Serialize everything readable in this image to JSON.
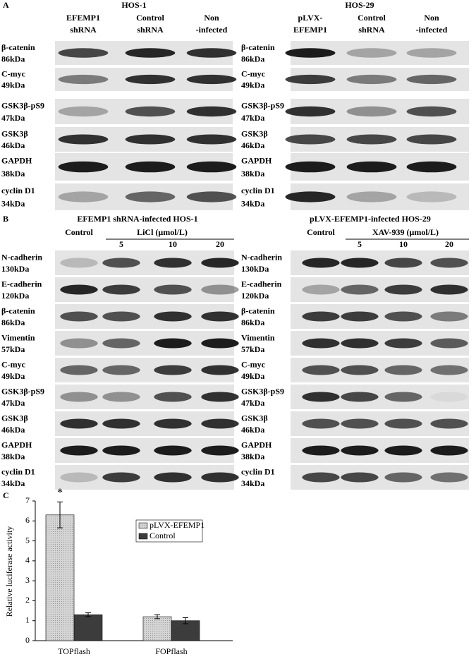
{
  "panel_labels": [
    "A",
    "B",
    "C"
  ],
  "blots_a": {
    "left": {
      "title": "HOS-1",
      "columns": [
        [
          "EFEMP1",
          "shRNA"
        ],
        [
          "Control",
          "shRNA"
        ],
        [
          "Non",
          "-infected"
        ]
      ],
      "rows": [
        [
          "β-catenin",
          "86kDa"
        ],
        [
          "C-myc",
          "49kDa"
        ],
        [
          "GSK3β-pS9",
          "47kDa"
        ],
        [
          "GSK3β",
          "46kDa"
        ],
        [
          "GAPDH",
          "38kDa"
        ],
        [
          "cyclin D1",
          "34kDa"
        ]
      ]
    },
    "right": {
      "title": "HOS-29",
      "columns": [
        [
          "pLVX-",
          "EFEMP1"
        ],
        [
          "Control",
          "shRNA"
        ],
        [
          "Non",
          "-infected"
        ]
      ],
      "rows": [
        [
          "β-catenin",
          "86kDa"
        ],
        [
          "C-myc",
          "49kDa"
        ],
        [
          "GSK3β-pS9",
          "47kDa"
        ],
        [
          "GSK3β",
          "46kDa"
        ],
        [
          "GAPDH",
          "38kDa"
        ],
        [
          "cyclin D1",
          "34kDa"
        ]
      ]
    }
  },
  "blots_b": {
    "left": {
      "title": "EFEMP1 shRNA-infected HOS-1",
      "control": "Control",
      "treatment": "LiCl (μmol/L)",
      "doses": [
        "5",
        "10",
        "20"
      ],
      "rows": [
        [
          "N-cadherin",
          "130kDa"
        ],
        [
          "E-cadherin",
          "120kDa"
        ],
        [
          "β-catenin",
          "86kDa"
        ],
        [
          "Vimentin",
          "57kDa"
        ],
        [
          "C-myc",
          "49kDa"
        ],
        [
          "GSK3β-pS9",
          "47kDa"
        ],
        [
          "GSK3β",
          "46kDa"
        ],
        [
          "GAPDH",
          "38kDa"
        ],
        [
          "cyclin D1",
          "34kDa"
        ]
      ]
    },
    "right": {
      "title": "pLVX-EFEMP1-infected HOS-29",
      "control": "Control",
      "treatment": "XAV-939 (μmol/L)",
      "doses": [
        "5",
        "10",
        "20"
      ],
      "rows": [
        [
          "N-cadherin",
          "130kDa"
        ],
        [
          "E-cadherin",
          "120kDa"
        ],
        [
          "β-catenin",
          "86kDa"
        ],
        [
          "Vimentin",
          "57kDa"
        ],
        [
          "C-myc",
          "49kDa"
        ],
        [
          "GSK3β-pS9",
          "47kDa"
        ],
        [
          "GSK3β",
          "46kDa"
        ],
        [
          "GAPDH",
          "38kDa"
        ],
        [
          "cyclin D1",
          "34kDa"
        ]
      ]
    }
  },
  "chart_data": {
    "type": "bar",
    "y_label": "Relative luciferase activity",
    "categories": [
      "TOPflash",
      "FOPflash"
    ],
    "series": [
      {
        "name": "pLVX-EFEMP1",
        "color": "#d4d4d4",
        "values": [
          6.3,
          1.2
        ],
        "errors": [
          0.65,
          0.1
        ]
      },
      {
        "name": "Control",
        "color": "#3c3c3c",
        "values": [
          1.3,
          1.0
        ],
        "errors": [
          0.1,
          0.15
        ]
      }
    ],
    "annotation": "*",
    "ylim": [
      0,
      7
    ],
    "yticks": [
      0,
      1,
      2,
      3,
      4,
      5,
      6,
      7
    ],
    "legend": "upper right"
  }
}
